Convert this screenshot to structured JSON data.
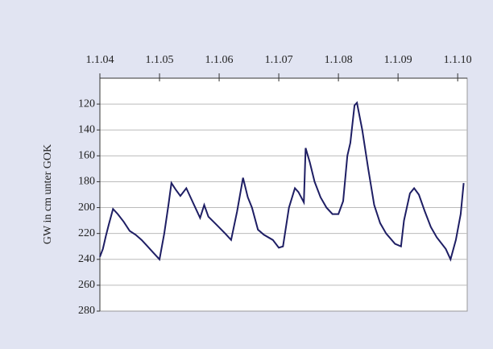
{
  "chart_data": {
    "type": "line",
    "y_label": "GW in cm unter GOK",
    "x": [
      2004.0,
      2004.05,
      2004.1,
      2004.15,
      2004.22,
      2004.3,
      2004.4,
      2004.5,
      2004.6,
      2004.7,
      2004.8,
      2004.9,
      2005.0,
      2005.08,
      2005.15,
      2005.2,
      2005.27,
      2005.35,
      2005.45,
      2005.55,
      2005.68,
      2005.75,
      2005.82,
      2005.95,
      2006.1,
      2006.2,
      2006.3,
      2006.4,
      2006.48,
      2006.55,
      2006.65,
      2006.75,
      2006.9,
      2007.0,
      2007.07,
      2007.17,
      2007.27,
      2007.33,
      2007.42,
      2007.45,
      2007.52,
      2007.6,
      2007.7,
      2007.8,
      2007.9,
      2008.0,
      2008.08,
      2008.15,
      2008.2,
      2008.27,
      2008.31,
      2008.4,
      2008.5,
      2008.6,
      2008.7,
      2008.8,
      2008.95,
      2009.05,
      2009.1,
      2009.2,
      2009.27,
      2009.35,
      2009.45,
      2009.55,
      2009.65,
      2009.8,
      2009.88,
      2009.97,
      2010.05,
      2010.1
    ],
    "series": [
      {
        "name": "GW",
        "color": "#1e1e64",
        "values": [
          238,
          232,
          222,
          213,
          201,
          205,
          211,
          218,
          221,
          225,
          230,
          235,
          240,
          220,
          198,
          181,
          186,
          191,
          185,
          195,
          208,
          198,
          207,
          213,
          220,
          225,
          203,
          177,
          192,
          200,
          217,
          221,
          225,
          231,
          230,
          200,
          185,
          188,
          196,
          154,
          165,
          180,
          192,
          200,
          205,
          205,
          195,
          160,
          150,
          121,
          119,
          140,
          170,
          198,
          212,
          220,
          228,
          230,
          210,
          189,
          185,
          190,
          203,
          215,
          223,
          232,
          240,
          225,
          205,
          181
        ]
      }
    ],
    "xlim": [
      2004.0,
      2010.16
    ],
    "xticks": [
      {
        "value": 2004,
        "label": "1.1.04"
      },
      {
        "value": 2005,
        "label": "1.1.05"
      },
      {
        "value": 2006,
        "label": "1.1.06"
      },
      {
        "value": 2007,
        "label": "1.1.07"
      },
      {
        "value": 2008,
        "label": "1.1.08"
      },
      {
        "value": 2009,
        "label": "1.1.09"
      },
      {
        "value": 2010,
        "label": "1.1.10"
      }
    ],
    "ylim": [
      100,
      280
    ],
    "y_inverted": true,
    "yticks": [
      120,
      140,
      160,
      180,
      200,
      220,
      240,
      260,
      280
    ],
    "grid": true
  }
}
